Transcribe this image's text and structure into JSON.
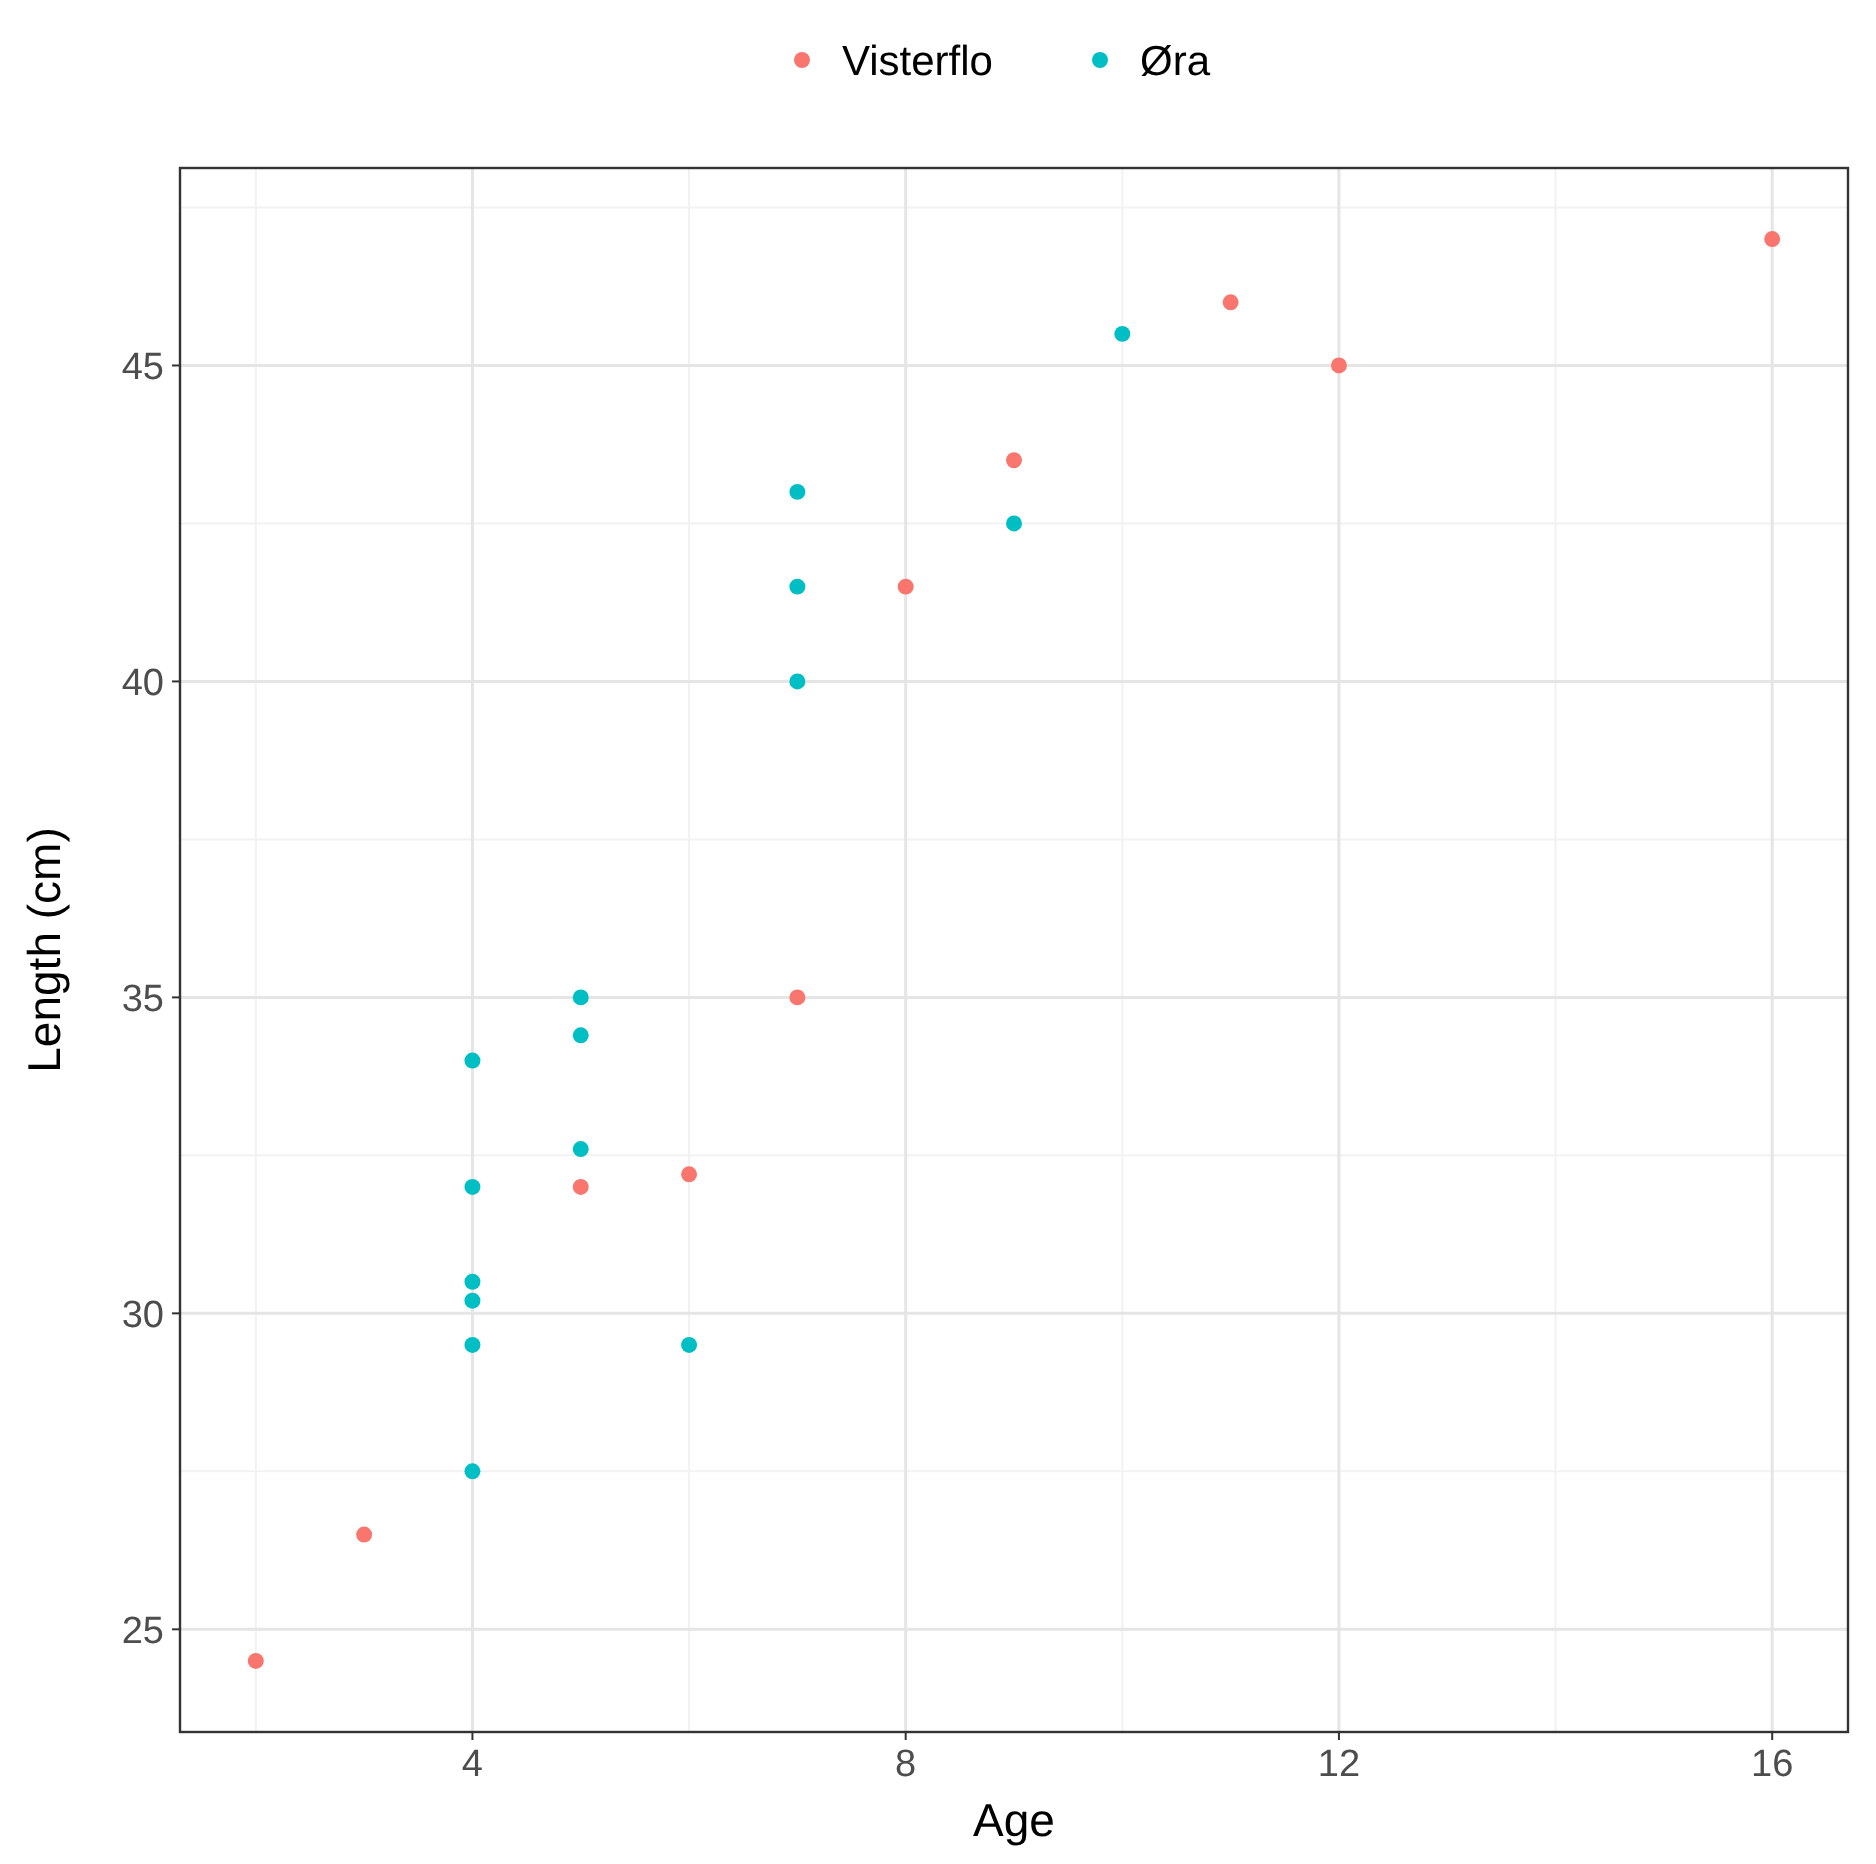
{
  "chart_data": {
    "type": "scatter",
    "xlabel": "Age",
    "ylabel": "Length (cm)",
    "xlim": [
      1.3,
      16.7
    ],
    "xticks": [
      4,
      8,
      12,
      16
    ],
    "ylim": [
      23.375,
      48.125
    ],
    "yticks": [
      25,
      30,
      35,
      40,
      45
    ],
    "grid": true,
    "legend": "top",
    "marker": "circle",
    "series": [
      {
        "name": "Visterflo",
        "color": "#f8766d",
        "x": [
          2,
          3,
          5,
          6,
          7,
          8,
          9,
          11,
          12,
          16
        ],
        "values": [
          24.5,
          26.5,
          32,
          32.2,
          35,
          41.5,
          43.5,
          46,
          45,
          47
        ]
      },
      {
        "name": "Øra",
        "color": "#00bfc4",
        "x": [
          4,
          4,
          4,
          4,
          4,
          4,
          5,
          5,
          5,
          6,
          7,
          7,
          7,
          9,
          10
        ],
        "values": [
          27.5,
          29.5,
          30.2,
          30.5,
          32,
          34,
          32.6,
          34.4,
          35,
          29.5,
          40,
          41.5,
          43,
          42.5,
          45.5
        ]
      }
    ]
  }
}
